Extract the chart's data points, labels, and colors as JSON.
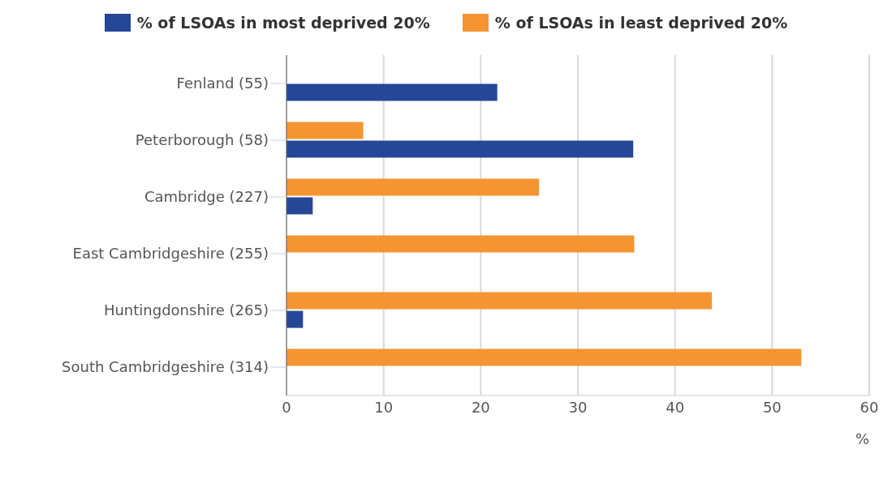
{
  "chart_data": {
    "type": "bar",
    "orientation": "horizontal",
    "categories": [
      "Fenland (55)",
      "Peterborough (58)",
      "Cambridge (227)",
      "East Cambridgeshire (255)",
      "Huntingdonshire (265)",
      "South Cambridgeshire (314)"
    ],
    "series": [
      {
        "name": "% of LSOAs in most deprived 20%",
        "color": "#264796",
        "values": [
          21.7,
          35.7,
          2.7,
          0,
          1.7,
          0
        ]
      },
      {
        "name": "% of LSOAs in least deprived 20%",
        "color": "#f49531",
        "values": [
          0,
          7.9,
          26.0,
          35.8,
          43.8,
          53.0
        ]
      }
    ],
    "xlabel": "%",
    "xlim": [
      0,
      60
    ],
    "xticks": [
      0,
      10,
      20,
      30,
      40,
      50,
      60
    ],
    "grid": "x",
    "legend": "top"
  }
}
